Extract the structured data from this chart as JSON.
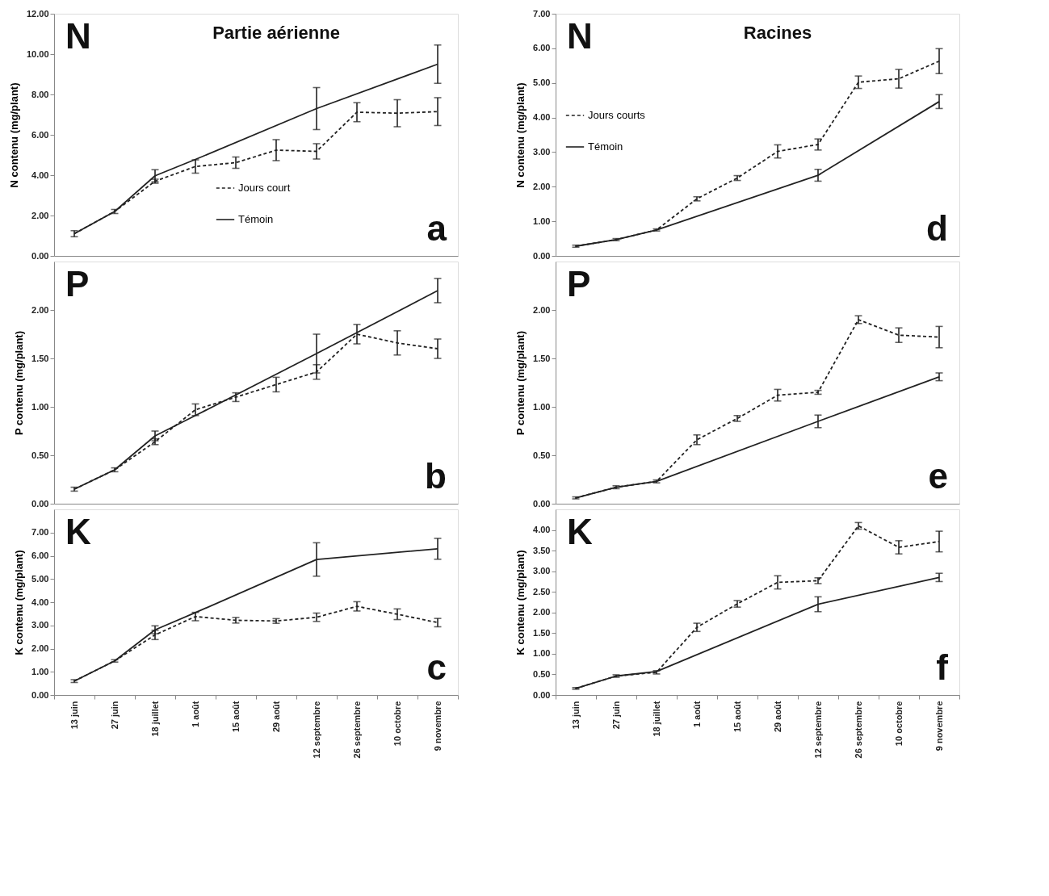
{
  "chart_data": [
    {
      "type": "line",
      "title": "Partie aérienne",
      "ylabel": "N contenu (mg/plant)",
      "annotations": [
        "N",
        "a"
      ],
      "legend": "bottom",
      "tick_labels": "y",
      "categories": [
        null,
        null,
        null,
        null,
        null,
        null,
        null,
        null,
        null,
        null
      ],
      "ylim": [
        0,
        12
      ],
      "yticks": [
        {
          "value": 0,
          "label": "0.00"
        },
        {
          "value": 2,
          "label": "2.00"
        },
        {
          "value": 4,
          "label": "4.00"
        },
        {
          "value": 6,
          "label": "6.00"
        },
        {
          "value": 8,
          "label": "8.00"
        },
        {
          "value": 10,
          "label": "10.00"
        },
        {
          "value": 12,
          "label": "12.00"
        }
      ],
      "series": [
        {
          "name": "Jours court",
          "color": "#222222",
          "line_style": "dashed",
          "values": [
            1.1,
            2.2,
            3.7,
            4.43,
            4.62,
            5.24,
            5.18,
            7.12,
            7.07,
            7.15
          ],
          "errors": [
            0.15,
            0.1,
            0.1,
            0.33,
            0.28,
            0.52,
            0.38,
            0.47,
            0.67,
            0.69
          ]
        },
        {
          "name": "Témoin",
          "color": "#222222",
          "line_style": "solid",
          "values": [
            1.1,
            2.2,
            3.97,
            4.78,
            null,
            null,
            7.3,
            null,
            null,
            9.5
          ],
          "errors": [
            null,
            null,
            0.3,
            null,
            null,
            null,
            1.04,
            null,
            null,
            0.95
          ]
        }
      ]
    },
    {
      "type": "line",
      "title": "Racines",
      "ylabel": "N contenu (mg/plant)",
      "annotations": [
        "N",
        "d"
      ],
      "legend": "left",
      "tick_labels": "y",
      "categories": [
        null,
        null,
        null,
        null,
        null,
        null,
        null,
        null,
        null,
        null
      ],
      "ylim": [
        0,
        7
      ],
      "yticks": [
        {
          "value": 0,
          "label": "0.00"
        },
        {
          "value": 1,
          "label": "1.00"
        },
        {
          "value": 2,
          "label": "2.00"
        },
        {
          "value": 3,
          "label": "3.00"
        },
        {
          "value": 4,
          "label": "4.00"
        },
        {
          "value": 5,
          "label": "5.00"
        },
        {
          "value": 6,
          "label": "6.00"
        },
        {
          "value": 7,
          "label": "7.00"
        }
      ],
      "series": [
        {
          "name": "Jours courts",
          "color": "#222222",
          "line_style": "dashed",
          "values": [
            0.28,
            0.47,
            0.75,
            1.65,
            2.25,
            3.02,
            3.22,
            5.02,
            5.12,
            5.63
          ],
          "errors": [
            0.03,
            0.03,
            0.03,
            0.06,
            0.07,
            0.19,
            0.16,
            0.18,
            0.27,
            0.36
          ]
        },
        {
          "name": "Témoin",
          "color": "#222222",
          "line_style": "solid",
          "values": [
            0.28,
            0.47,
            0.75,
            null,
            null,
            null,
            2.33,
            null,
            null,
            4.46
          ],
          "errors": [
            null,
            null,
            null,
            null,
            null,
            null,
            0.17,
            null,
            null,
            0.2
          ]
        }
      ]
    },
    {
      "type": "line",
      "ylabel": "P contenu (mg/plant)",
      "annotations": [
        "P",
        "b"
      ],
      "tick_labels": "y",
      "categories": [
        null,
        null,
        null,
        null,
        null,
        null,
        null,
        null,
        null,
        null
      ],
      "ylim": [
        0,
        2.5
      ],
      "yticks": [
        {
          "value": 0,
          "label": "0.00"
        },
        {
          "value": 0.5,
          "label": "0.50"
        },
        {
          "value": 1,
          "label": "1.00"
        },
        {
          "value": 1.5,
          "label": "1.50"
        },
        {
          "value": 2,
          "label": "2.00"
        }
      ],
      "series": [
        {
          "color": "#222222",
          "line_style": "dashed",
          "values": [
            0.15,
            0.35,
            0.64,
            0.97,
            1.1,
            1.23,
            1.36,
            1.75,
            1.66,
            1.6
          ],
          "errors": [
            0.02,
            0.02,
            0.03,
            0.06,
            0.045,
            0.075,
            0.075,
            0.1,
            0.125,
            0.1
          ]
        },
        {
          "color": "#222222",
          "line_style": "solid",
          "values": [
            0.15,
            0.35,
            0.7,
            0.91,
            null,
            null,
            1.55,
            null,
            null,
            2.2
          ],
          "errors": [
            null,
            null,
            0.05,
            null,
            null,
            null,
            0.2,
            null,
            null,
            0.125
          ]
        }
      ]
    },
    {
      "type": "line",
      "ylabel": "P contenu (mg/plant)",
      "annotations": [
        "P",
        "e"
      ],
      "tick_labels": "y",
      "categories": [
        null,
        null,
        null,
        null,
        null,
        null,
        null,
        null,
        null,
        null
      ],
      "ylim": [
        0,
        2.5
      ],
      "yticks": [
        {
          "value": 0,
          "label": "0.00"
        },
        {
          "value": 0.5,
          "label": "0.50"
        },
        {
          "value": 1,
          "label": "1.00"
        },
        {
          "value": 1.5,
          "label": "1.50"
        },
        {
          "value": 2,
          "label": "2.00"
        }
      ],
      "series": [
        {
          "color": "#222222",
          "line_style": "dashed",
          "values": [
            0.06,
            0.17,
            0.23,
            0.66,
            0.88,
            1.12,
            1.15,
            1.9,
            1.74,
            1.72
          ],
          "errors": [
            0.01,
            0.015,
            0.015,
            0.05,
            0.03,
            0.06,
            0.02,
            0.04,
            0.075,
            0.11
          ]
        },
        {
          "color": "#222222",
          "line_style": "solid",
          "values": [
            0.06,
            0.17,
            0.23,
            null,
            null,
            null,
            0.85,
            null,
            null,
            1.31
          ],
          "errors": [
            null,
            null,
            null,
            null,
            null,
            null,
            0.065,
            null,
            null,
            0.04
          ]
        }
      ]
    },
    {
      "type": "line",
      "ylabel": "K contenu (mg/plant)",
      "annotations": [
        "K",
        "c"
      ],
      "categories": [
        "13 juin",
        "27 juin",
        "18 juillet",
        "1 août",
        "15 août",
        "29 août",
        "12 septembre",
        "26 septembre",
        "10 octobre",
        "9 novembre"
      ],
      "ylim": [
        0,
        8
      ],
      "yticks": [
        {
          "value": 0,
          "label": "0.00"
        },
        {
          "value": 1,
          "label": "1.00"
        },
        {
          "value": 2,
          "label": "2.00"
        },
        {
          "value": 3,
          "label": "3.00"
        },
        {
          "value": 4,
          "label": "4.00"
        },
        {
          "value": 5,
          "label": "5.00"
        },
        {
          "value": 6,
          "label": "6.00"
        },
        {
          "value": 7,
          "label": "7.00"
        }
      ],
      "series": [
        {
          "color": "#222222",
          "line_style": "dashed",
          "values": [
            0.6,
            1.47,
            2.59,
            3.38,
            3.22,
            3.19,
            3.35,
            3.82,
            3.48,
            3.12
          ],
          "errors": [
            0.06,
            0.05,
            0.2,
            0.18,
            0.12,
            0.1,
            0.18,
            0.2,
            0.23,
            0.18
          ]
        },
        {
          "color": "#222222",
          "line_style": "solid",
          "values": [
            0.6,
            1.47,
            2.81,
            3.55,
            null,
            null,
            5.84,
            null,
            null,
            6.3
          ],
          "errors": [
            null,
            null,
            0.17,
            null,
            null,
            null,
            0.72,
            null,
            null,
            0.45
          ]
        }
      ]
    },
    {
      "type": "line",
      "ylabel": "K contenu (mg/plant)",
      "annotations": [
        "K",
        "f"
      ],
      "categories": [
        "13 juin",
        "27 juin",
        "18 juillet",
        "1 août",
        "15 août",
        "29 août",
        "12 septembre",
        "26 septembre",
        "10 octobre",
        "9 novembre"
      ],
      "ylim": [
        0,
        4.5
      ],
      "yticks": [
        {
          "value": 0,
          "label": "0.00"
        },
        {
          "value": 0.5,
          "label": "0.50"
        },
        {
          "value": 1,
          "label": "1.00"
        },
        {
          "value": 1.5,
          "label": "1.50"
        },
        {
          "value": 2,
          "label": "2.00"
        },
        {
          "value": 2.5,
          "label": "2.50"
        },
        {
          "value": 3,
          "label": "3.00"
        },
        {
          "value": 3.5,
          "label": "3.50"
        },
        {
          "value": 4,
          "label": "4.00"
        }
      ],
      "series": [
        {
          "color": "#222222",
          "line_style": "dashed",
          "values": [
            0.16,
            0.46,
            0.55,
            1.64,
            2.21,
            2.73,
            2.77,
            4.1,
            3.58,
            3.72
          ],
          "errors": [
            0.02,
            0.03,
            0.04,
            0.1,
            0.08,
            0.16,
            0.07,
            0.08,
            0.16,
            0.25
          ]
        },
        {
          "color": "#222222",
          "line_style": "solid",
          "values": [
            0.16,
            0.46,
            0.57,
            null,
            null,
            null,
            2.2,
            null,
            null,
            2.85
          ],
          "errors": [
            null,
            null,
            null,
            null,
            null,
            null,
            0.18,
            null,
            null,
            0.1
          ]
        }
      ]
    }
  ]
}
